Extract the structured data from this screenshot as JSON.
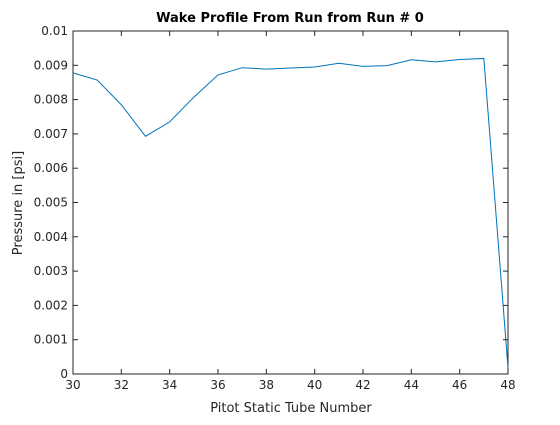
{
  "chart_data": {
    "type": "line",
    "title": "Wake Profile From Run from Run # 0",
    "xlabel": "Pitot Static Tube Number",
    "ylabel": "Pressure in [psi]",
    "xlim": [
      30,
      48
    ],
    "ylim": [
      0,
      0.01
    ],
    "xticks": [
      30,
      32,
      34,
      36,
      38,
      40,
      42,
      44,
      46,
      48
    ],
    "xtick_labels": [
      "30",
      "32",
      "34",
      "36",
      "38",
      "40",
      "42",
      "44",
      "46",
      "48"
    ],
    "yticks": [
      0,
      0.001,
      0.002,
      0.003,
      0.004,
      0.005,
      0.006,
      0.007,
      0.008,
      0.009,
      0.01
    ],
    "ytick_labels": [
      "0",
      "0.001",
      "0.002",
      "0.003",
      "0.004",
      "0.005",
      "0.006",
      "0.007",
      "0.008",
      "0.009",
      "0.01"
    ],
    "grid": false,
    "legend": "none",
    "series": [
      {
        "color": "#0072bd",
        "x": [
          30,
          31,
          32,
          33,
          34,
          35,
          36,
          37,
          38,
          39,
          40,
          41,
          42,
          43,
          44,
          45,
          46,
          47,
          48
        ],
        "y": [
          0.00878,
          0.00857,
          0.00785,
          0.00693,
          0.00735,
          0.00807,
          0.00872,
          0.00893,
          0.00889,
          0.00892,
          0.00895,
          0.00906,
          0.00897,
          0.00899,
          0.00916,
          0.0091,
          0.00917,
          0.0092,
          0.00018
        ]
      }
    ]
  }
}
